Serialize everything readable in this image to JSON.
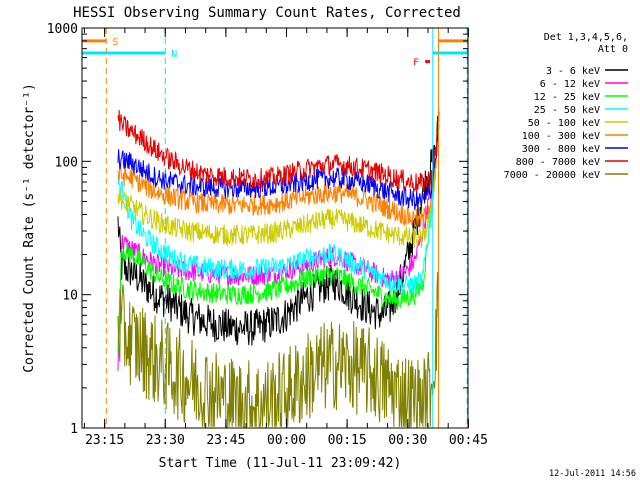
{
  "chart_data": {
    "type": "line",
    "title": "HESSI Observing Summary Count Rates, Corrected",
    "xlabel": "Start Time (11-Jul-11 23:09:42)",
    "ylabel": "Corrected Count Rate (s⁻¹ detector⁻¹)",
    "footer": "12-Jul-2011 14:56",
    "yscale": "log",
    "ylim": [
      1,
      1000
    ],
    "ytick_labels": [
      "1",
      "10",
      "100",
      "1000"
    ],
    "x_range_min": [
      -0.3,
      95.2
    ],
    "xtick_labels": [
      "23:15",
      "23:30",
      "23:45",
      "00:00",
      "00:15",
      "00:30",
      "00:45"
    ],
    "legend": {
      "title_lines": [
        "Det 1,3,4,5,6,",
        "Att 0"
      ],
      "placement": "right-outside"
    },
    "series": [
      {
        "name": "3 - 6 keV",
        "color": "#000000",
        "x": [
          8.6,
          9.5,
          12,
          15,
          18,
          22,
          26,
          30,
          36,
          42,
          47,
          50,
          53,
          56,
          59,
          62,
          64,
          66,
          69,
          72,
          74,
          76,
          78,
          80,
          82,
          84,
          86,
          87.3,
          88
        ],
        "y": [
          35,
          16,
          15,
          12,
          10,
          8.5,
          7,
          6.3,
          5.7,
          5.6,
          6.2,
          7,
          8.5,
          10,
          11.5,
          12.5,
          11.5,
          10,
          8.5,
          7.5,
          7,
          8,
          11,
          18,
          30,
          60,
          90,
          120,
          220
        ]
      },
      {
        "name": "6 - 12 keV",
        "color": "#ff00ff",
        "x": [
          8.6,
          9.5,
          12,
          15,
          18,
          22,
          26,
          30,
          36,
          42,
          47,
          50,
          53,
          56,
          59,
          62,
          64,
          66,
          69,
          72,
          74,
          76,
          78,
          80,
          82,
          84,
          86,
          87.3,
          88
        ],
        "y": [
          3,
          25,
          22,
          19,
          17,
          15.5,
          15,
          14.5,
          14,
          14,
          14.2,
          15,
          16,
          17,
          18.5,
          19.5,
          19,
          17.5,
          16,
          14.5,
          13.5,
          13,
          13.5,
          15,
          18,
          30,
          60,
          100,
          220
        ]
      },
      {
        "name": "12 - 25 keV",
        "color": "#00ff00",
        "x": [
          8.6,
          9.5,
          12,
          15,
          18,
          22,
          26,
          30,
          36,
          42,
          47,
          50,
          53,
          56,
          59,
          62,
          64,
          66,
          69,
          72,
          74,
          76,
          78,
          80,
          82,
          84,
          86,
          87.3,
          88
        ],
        "y": [
          4,
          22,
          20,
          17,
          14,
          12,
          11,
          10.5,
          10,
          10.2,
          10.8,
          11.5,
          12.5,
          13.5,
          14,
          14,
          13.5,
          12.5,
          11.5,
          10.5,
          9.8,
          9.3,
          9,
          9.5,
          10,
          12,
          40,
          100,
          220
        ]
      },
      {
        "name": "25 - 50 keV",
        "color": "#00ffff",
        "x": [
          8.6,
          9.5,
          12,
          15,
          18,
          22,
          26,
          30,
          36,
          42,
          47,
          50,
          53,
          56,
          59,
          62,
          64,
          66,
          69,
          72,
          74,
          76,
          78,
          80,
          82,
          84,
          86,
          87.3,
          88
        ],
        "y": [
          70,
          62,
          36,
          28,
          23,
          19,
          17,
          16,
          15.5,
          15.5,
          16,
          16.5,
          17.5,
          19,
          20,
          20,
          19,
          17.5,
          16,
          14.5,
          13.5,
          12.5,
          12,
          11.8,
          11.8,
          13,
          40,
          100,
          220
        ]
      },
      {
        "name": "50 - 100 keV",
        "color": "#cccc00",
        "x": [
          8.6,
          9.5,
          12,
          15,
          18,
          22,
          26,
          30,
          36,
          42,
          47,
          50,
          53,
          56,
          59,
          62,
          64,
          66,
          69,
          72,
          74,
          76,
          78,
          80,
          82,
          84,
          86,
          87.3,
          88
        ],
        "y": [
          55,
          52,
          46,
          40,
          36,
          32,
          30,
          29,
          28,
          28,
          29,
          30.5,
          32,
          34,
          36,
          37,
          36.5,
          35,
          33,
          31,
          29.5,
          28.5,
          27.5,
          27,
          26.5,
          26,
          40,
          100,
          220
        ]
      },
      {
        "name": "100 - 300 keV",
        "color": "#ff8000",
        "x": [
          8.6,
          9.5,
          12,
          15,
          18,
          22,
          26,
          30,
          36,
          42,
          47,
          50,
          53,
          56,
          59,
          62,
          64,
          66,
          69,
          72,
          74,
          76,
          78,
          80,
          82,
          84,
          86,
          87.3,
          88
        ],
        "y": [
          80,
          78,
          75,
          66,
          59,
          54,
          50,
          48,
          47,
          47,
          48,
          50,
          52.5,
          55,
          57,
          58,
          57.5,
          56,
          53,
          49,
          46,
          43.5,
          41,
          39,
          37,
          36,
          50,
          100,
          220
        ]
      },
      {
        "name": "300 - 800 keV",
        "color": "#0000ff",
        "x": [
          8.6,
          9.5,
          12,
          15,
          18,
          22,
          26,
          30,
          36,
          42,
          47,
          50,
          53,
          56,
          59,
          62,
          64,
          66,
          69,
          72,
          74,
          76,
          78,
          80,
          82,
          84,
          86,
          87.3,
          88
        ],
        "y": [
          105,
          102,
          98,
          86,
          76,
          70,
          66,
          64,
          63,
          63,
          64,
          66,
          69,
          72,
          74,
          75,
          74,
          72,
          69,
          65,
          61,
          58,
          55,
          53,
          51,
          50,
          60,
          110,
          220
        ]
      },
      {
        "name": "800 - 7000 keV",
        "color": "#e60000",
        "x": [
          8.6,
          9.5,
          12,
          15,
          18,
          22,
          26,
          30,
          36,
          42,
          47,
          50,
          53,
          56,
          59,
          62,
          64,
          66,
          69,
          72,
          74,
          76,
          78,
          80,
          82,
          84,
          86,
          87.3,
          88
        ],
        "y": [
          210,
          190,
          165,
          145,
          120,
          100,
          88,
          80,
          76,
          74,
          75,
          79,
          84,
          89,
          93,
          95,
          94,
          92,
          88,
          84,
          80,
          77,
          74,
          71,
          69,
          68,
          75,
          120,
          220
        ]
      },
      {
        "name": "7000 - 20000 keV",
        "color": "#808000",
        "x": [
          8.6,
          9.5,
          12,
          15,
          18,
          22,
          26,
          30,
          36,
          42,
          47,
          50,
          53,
          56,
          59,
          62,
          64,
          66,
          69,
          72,
          74,
          76,
          78,
          80,
          82,
          84,
          86,
          87.3,
          88
        ],
        "y": [
          6,
          5.5,
          4.5,
          3.8,
          3.2,
          2.7,
          2.3,
          2,
          1.6,
          1.5,
          1.6,
          1.8,
          2.1,
          2.5,
          2.8,
          3,
          3,
          2.9,
          2.7,
          2.5,
          2.2,
          2,
          1.8,
          1.7,
          1.6,
          1.5,
          2,
          5,
          10
        ]
      }
    ],
    "annotations": [
      {
        "label": "S",
        "kind": "SAA",
        "color": "#ff8000",
        "band_y": 800,
        "segments": [
          [
            -0.3,
            5.7
          ],
          [
            87.9,
            95.2
          ]
        ],
        "vlines": [
          5.7,
          87.9
        ]
      },
      {
        "label": "N",
        "kind": "night",
        "color": "#00e5ff",
        "band_y": 650,
        "segments": [
          [
            -0.3,
            20.3
          ],
          [
            86.5,
            95.2
          ]
        ],
        "vlines": [
          20.3,
          86.5,
          95
        ]
      },
      {
        "label": "F",
        "kind": "flare",
        "color": "#ff0000",
        "band_y": 560,
        "segments": [
          [
            84.6,
            85.8
          ]
        ],
        "vlines": []
      }
    ]
  }
}
